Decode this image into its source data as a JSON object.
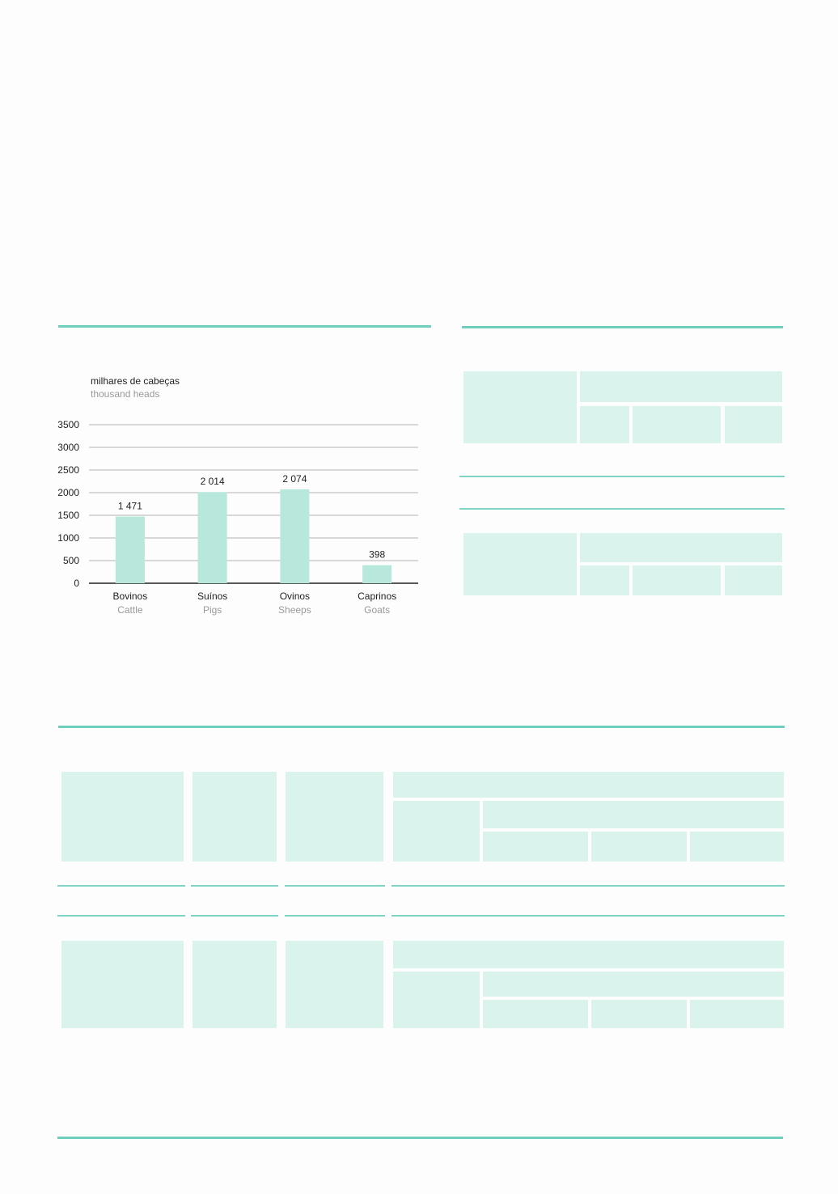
{
  "chart_data": {
    "type": "bar",
    "unit_label": "milhares de cabeças",
    "unit_label_en": "thousand heads",
    "categories": [
      "Bovinos",
      "Suínos",
      "Ovinos",
      "Caprinos"
    ],
    "categories_en": [
      "Cattle",
      "Pigs",
      "Sheeps",
      "Goats"
    ],
    "values": [
      1471,
      2014,
      2074,
      398
    ],
    "value_labels": [
      "1 471",
      "2 014",
      "2 074",
      "398"
    ],
    "ylim": [
      0,
      3500
    ],
    "yticks": [
      0,
      500,
      1000,
      1500,
      2000,
      2500,
      3000,
      3500
    ],
    "grid": true,
    "colors": {
      "bar": "#b8e8dc",
      "grid": "#9a9a9a",
      "axis": "#222222",
      "secondary_text": "#9a9a9a"
    }
  }
}
